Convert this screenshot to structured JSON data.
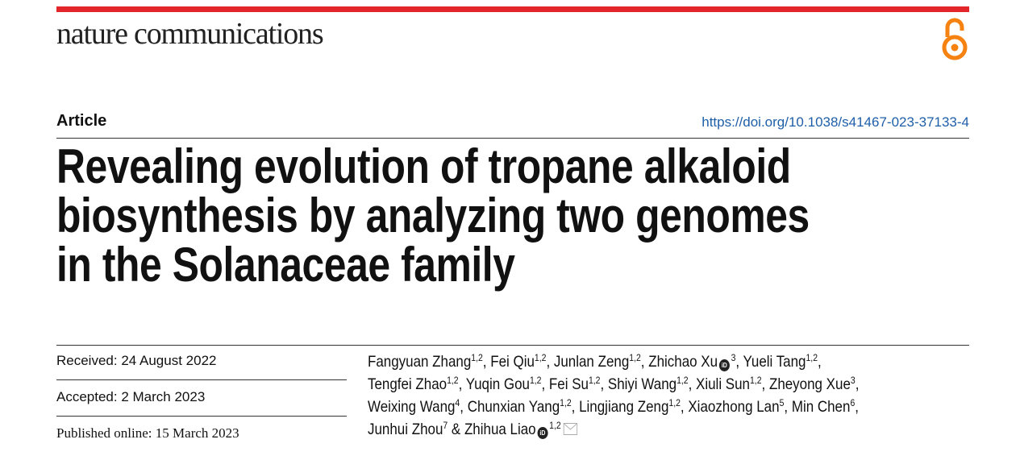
{
  "header": {
    "journal": "nature communications",
    "accent_color": "#e3262b",
    "open_access_icon": "open-access-lock-icon",
    "open_access_color": "#f68212"
  },
  "article_type": "Article",
  "doi": "https://doi.org/10.1038/s41467-023-37133-4",
  "title_lines": [
    "Revealing evolution of tropane alkaloid",
    "biosynthesis by analyzing two genomes",
    "in the Solanaceae family"
  ],
  "dates": {
    "received": "Received: 24 August 2022",
    "accepted": "Accepted: 2 March 2023",
    "published": "Published online: 15 March 2023"
  },
  "authors": [
    {
      "name": "Fangyuan Zhang",
      "aff": "1,2"
    },
    {
      "name": "Fei Qiu",
      "aff": "1,2"
    },
    {
      "name": "Junlan Zeng",
      "aff": "1,2"
    },
    {
      "name": "Zhichao Xu",
      "aff": "3",
      "orcid": true
    },
    {
      "name": "Yueli Tang",
      "aff": "1,2"
    },
    {
      "name": "Tengfei Zhao",
      "aff": "1,2"
    },
    {
      "name": "Yuqin Gou",
      "aff": "1,2"
    },
    {
      "name": "Fei Su",
      "aff": "1,2"
    },
    {
      "name": "Shiyi Wang",
      "aff": "1,2"
    },
    {
      "name": "Xiuli Sun",
      "aff": "1,2"
    },
    {
      "name": "Zheyong Xue",
      "aff": "3"
    },
    {
      "name": "Weixing Wang",
      "aff": "4"
    },
    {
      "name": "Chunxian Yang",
      "aff": "1,2"
    },
    {
      "name": "Lingjiang Zeng",
      "aff": "1,2"
    },
    {
      "name": "Xiaozhong Lan",
      "aff": "5"
    },
    {
      "name": "Min Chen",
      "aff": "6"
    },
    {
      "name": "Junhui Zhou",
      "aff": "7"
    },
    {
      "name": "Zhihua Liao",
      "aff": "1,2",
      "orcid": true,
      "corresponding": true
    }
  ],
  "orcid_label": "iD",
  "line_breaks_after": [
    4,
    10,
    15
  ]
}
